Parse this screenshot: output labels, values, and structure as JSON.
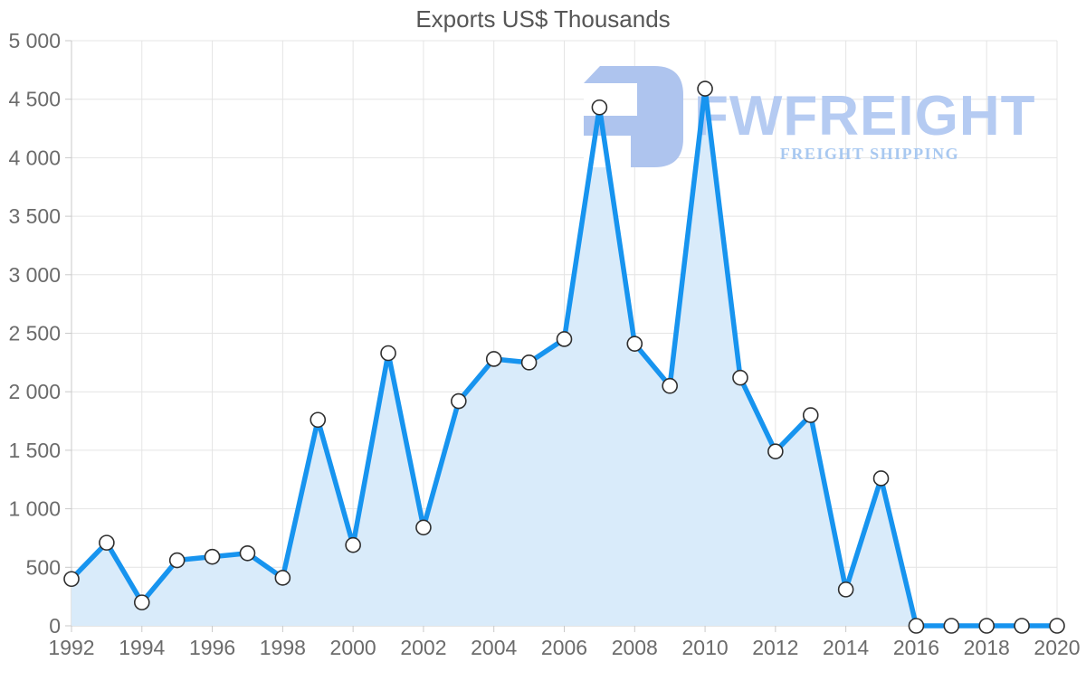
{
  "title": "Exports US$ Thousands",
  "watermark": {
    "brand": "FWFREIGHT",
    "subtitle": "FREIGHT SHIPPING",
    "logo_color": "#aec4ee",
    "text_color": "#b5cbf2",
    "subtitle_color": "#a8c8f0"
  },
  "chart_data": {
    "type": "area",
    "title": "Exports US$ Thousands",
    "xlabel": "",
    "ylabel": "",
    "series_name": "Exports US$ Thousands",
    "x": [
      1992,
      1993,
      1994,
      1995,
      1996,
      1997,
      1998,
      1999,
      2000,
      2001,
      2002,
      2003,
      2004,
      2005,
      2006,
      2007,
      2008,
      2009,
      2010,
      2011,
      2012,
      2013,
      2014,
      2015,
      2016,
      2017,
      2018,
      2019,
      2020
    ],
    "values": [
      400,
      710,
      200,
      560,
      590,
      620,
      410,
      1760,
      690,
      2330,
      840,
      1920,
      2280,
      2250,
      2450,
      4430,
      2410,
      2050,
      4590,
      2120,
      1490,
      1800,
      310,
      1260,
      0,
      0,
      0,
      0,
      0
    ],
    "ylim": [
      0,
      5000
    ],
    "y_tick_step": 500,
    "y_tick_labels": [
      "0",
      "500",
      "1 000",
      "1 500",
      "2 000",
      "2 500",
      "3 000",
      "3 500",
      "4 000",
      "4 500",
      "5 000"
    ],
    "x_tick_labels": [
      "1992",
      "1994",
      "1996",
      "1998",
      "2000",
      "2002",
      "2004",
      "2006",
      "2008",
      "2010",
      "2012",
      "2014",
      "2016",
      "2018",
      "2020"
    ],
    "grid": true,
    "legend": "none",
    "line_color": "#1794ef",
    "fill_color": "#d9ebfa",
    "grid_color": "#e4e4e4",
    "axis_color": "#c9c9c9",
    "label_color": "#6b6b6b",
    "marker_fill": "#ffffff",
    "marker_stroke": "#2f2f2f"
  }
}
